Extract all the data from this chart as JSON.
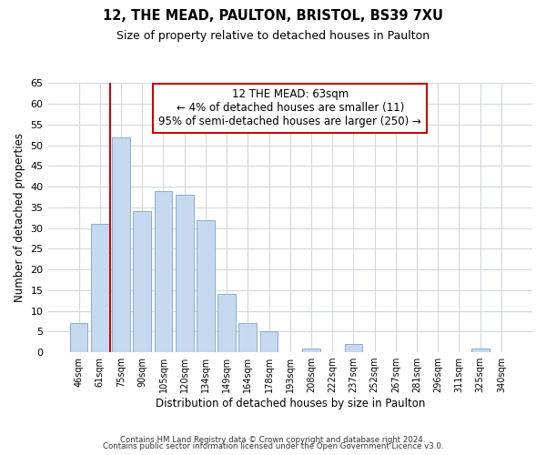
{
  "title": "12, THE MEAD, PAULTON, BRISTOL, BS39 7XU",
  "subtitle": "Size of property relative to detached houses in Paulton",
  "xlabel": "Distribution of detached houses by size in Paulton",
  "ylabel": "Number of detached properties",
  "bar_labels": [
    "46sqm",
    "61sqm",
    "75sqm",
    "90sqm",
    "105sqm",
    "120sqm",
    "134sqm",
    "149sqm",
    "164sqm",
    "178sqm",
    "193sqm",
    "208sqm",
    "222sqm",
    "237sqm",
    "252sqm",
    "267sqm",
    "281sqm",
    "296sqm",
    "311sqm",
    "325sqm",
    "340sqm"
  ],
  "bar_values": [
    7,
    31,
    52,
    34,
    39,
    38,
    32,
    14,
    7,
    5,
    0,
    1,
    0,
    2,
    0,
    0,
    0,
    0,
    0,
    1,
    0
  ],
  "bar_color": "#c6d9f1",
  "bar_edge_color": "#8aaecc",
  "grid_color": "#d0d8e0",
  "vline_color": "#cc0000",
  "annotation_title": "12 THE MEAD: 63sqm",
  "annotation_line1": "← 4% of detached houses are smaller (11)",
  "annotation_line2": "95% of semi-detached houses are larger (250) →",
  "annotation_box_color": "#ffffff",
  "annotation_box_edge": "#cc0000",
  "ylim": [
    0,
    65
  ],
  "yticks": [
    0,
    5,
    10,
    15,
    20,
    25,
    30,
    35,
    40,
    45,
    50,
    55,
    60,
    65
  ],
  "footer1": "Contains HM Land Registry data © Crown copyright and database right 2024.",
  "footer2": "Contains public sector information licensed under the Open Government Licence v3.0.",
  "bg_color": "#ffffff"
}
